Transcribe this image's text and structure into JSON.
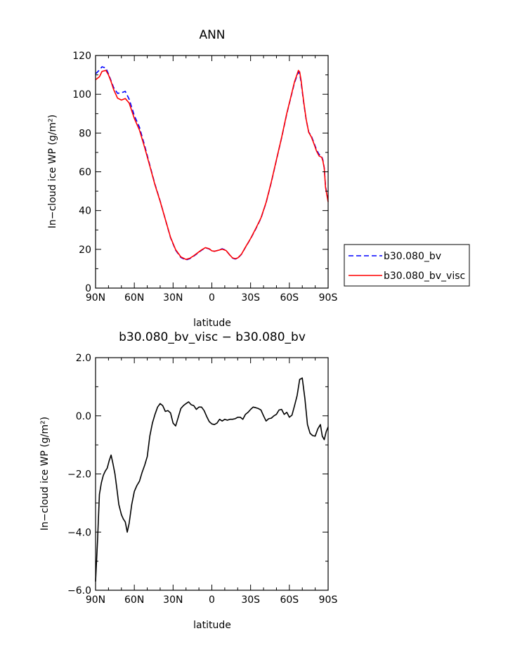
{
  "chart_data": [
    {
      "type": "line",
      "title": "ANN",
      "xlabel": "latitude",
      "ylabel": "In−cloud ice WP (g/m²)",
      "xlim": [
        90,
        -90
      ],
      "ylim": [
        0,
        120
      ],
      "x_ticks": [
        90,
        60,
        30,
        0,
        -30,
        -60,
        -90
      ],
      "x_tick_labels": [
        "90N",
        "60N",
        "30N",
        "0",
        "30S",
        "60S",
        "90S"
      ],
      "y_ticks": [
        0,
        20,
        40,
        60,
        80,
        100,
        120
      ],
      "y_tick_labels": [
        "0",
        "20",
        "40",
        "60",
        "80",
        "100",
        "120"
      ],
      "legend_position": "right",
      "series": [
        {
          "name": "b30.080_bv",
          "color": "#0000ff",
          "style": "dashed",
          "x": [
            90,
            87,
            85,
            82,
            80,
            78,
            76,
            73,
            70,
            67,
            64,
            60,
            56,
            52,
            48,
            44,
            40,
            36,
            32,
            28,
            24,
            20,
            17,
            14,
            11,
            8,
            5,
            2,
            0,
            -2,
            -5,
            -8,
            -11,
            -14,
            -16,
            -18,
            -20,
            -23,
            -26,
            -30,
            -34,
            -38,
            -42,
            -46,
            -50,
            -54,
            -58,
            -61,
            -64,
            -67,
            -68,
            -69,
            -71,
            -73,
            -75,
            -77,
            -79,
            -81,
            -83,
            -85,
            -86,
            -87,
            -88,
            -90
          ],
          "values": [
            110.5,
            112.5,
            114.2,
            113.5,
            110.5,
            107,
            103.5,
            100.5,
            100.8,
            101.5,
            97.5,
            89,
            83,
            73.5,
            63.5,
            53.5,
            45,
            35.5,
            26,
            19.5,
            15.8,
            14.5,
            15.2,
            16.5,
            18,
            19.5,
            20.8,
            20.2,
            19.2,
            19,
            19.5,
            20.3,
            19.5,
            17,
            15.5,
            15,
            15.3,
            17.5,
            21,
            25.5,
            30.5,
            36,
            44,
            54.5,
            66,
            77.5,
            90,
            98,
            106,
            111.5,
            110.5,
            106.5,
            96,
            87,
            80.5,
            78.5,
            75,
            71.5,
            69,
            68,
            66,
            62,
            52.5,
            45
          ]
        },
        {
          "name": "b30.080_bv_visc",
          "color": "#ff0000",
          "style": "solid",
          "x": [
            90,
            87,
            85,
            82,
            80,
            78,
            76,
            73,
            70,
            67,
            64,
            60,
            56,
            52,
            48,
            44,
            40,
            36,
            32,
            28,
            24,
            20,
            17,
            14,
            11,
            8,
            5,
            2,
            0,
            -2,
            -5,
            -8,
            -11,
            -14,
            -16,
            -18,
            -20,
            -23,
            -26,
            -30,
            -34,
            -38,
            -42,
            -46,
            -50,
            -54,
            -58,
            -61,
            -64,
            -67,
            -68,
            -69,
            -71,
            -73,
            -75,
            -77,
            -79,
            -81,
            -83,
            -85,
            -86,
            -87,
            -88,
            -90
          ],
          "values": [
            107.5,
            109,
            111.8,
            112.3,
            110,
            106.5,
            102.5,
            98,
            97,
            97.8,
            95.5,
            87.5,
            81.5,
            72.5,
            63,
            53.2,
            44.8,
            35.5,
            26.2,
            19.8,
            16.1,
            14.8,
            15.4,
            16.7,
            18.2,
            19.7,
            20.9,
            20.3,
            19.2,
            19,
            19.5,
            20.1,
            19.4,
            17,
            15.6,
            15.2,
            15.5,
            17.6,
            21.1,
            25.6,
            30.7,
            36.2,
            44.2,
            54.7,
            66.2,
            77.7,
            90.2,
            98.3,
            106.5,
            112.3,
            111.5,
            107.5,
            96.5,
            87.2,
            80.3,
            78,
            74.5,
            70.8,
            68.2,
            67.5,
            65.5,
            61.8,
            52,
            44.5
          ]
        }
      ]
    },
    {
      "type": "line",
      "title": "b30.080_bv_visc − b30.080_bv",
      "xlabel": "latitude",
      "ylabel": "In−cloud ice WP (g/m²)",
      "xlim": [
        90,
        -90
      ],
      "ylim": [
        -6,
        2
      ],
      "x_ticks": [
        90,
        60,
        30,
        0,
        -30,
        -60,
        -90
      ],
      "x_tick_labels": [
        "90N",
        "60N",
        "30N",
        "0",
        "30S",
        "60S",
        "90S"
      ],
      "y_ticks": [
        -6,
        -4,
        -2,
        0,
        2
      ],
      "y_tick_labels": [
        "−6.0",
        "−4.0",
        "−2.0",
        "0.0",
        "2.0"
      ],
      "series": [
        {
          "color": "#000000",
          "style": "solid",
          "x": [
            90,
            88.5,
            87,
            85.5,
            84,
            82.5,
            81,
            79.5,
            78,
            76.5,
            75,
            73.5,
            72,
            70,
            68.5,
            67,
            65.5,
            64,
            62,
            60,
            58,
            56,
            54,
            52,
            50,
            48,
            46,
            44,
            42,
            40,
            38,
            36,
            34,
            32,
            30,
            28,
            26,
            24,
            22,
            20,
            18,
            16,
            14,
            12,
            10,
            8,
            6,
            4,
            2,
            0,
            -2,
            -4,
            -6,
            -8,
            -10,
            -12,
            -14,
            -16,
            -18,
            -20,
            -22,
            -24,
            -26,
            -28,
            -30,
            -32,
            -34,
            -36,
            -38,
            -40,
            -42,
            -44,
            -46,
            -48,
            -50,
            -52,
            -54,
            -56,
            -58,
            -60,
            -62,
            -64,
            -66,
            -68,
            -70,
            -72,
            -74,
            -76,
            -78,
            -80,
            -82,
            -84,
            -85.5,
            -87,
            -88.5,
            -90
          ],
          "values": [
            -5.7,
            -4.3,
            -2.7,
            -2.3,
            -2.05,
            -1.9,
            -1.8,
            -1.55,
            -1.35,
            -1.65,
            -2.0,
            -2.5,
            -3.05,
            -3.4,
            -3.55,
            -3.65,
            -4.0,
            -3.7,
            -3.05,
            -2.6,
            -2.4,
            -2.25,
            -1.95,
            -1.7,
            -1.4,
            -0.7,
            -0.25,
            0.05,
            0.3,
            0.42,
            0.35,
            0.15,
            0.18,
            0.1,
            -0.25,
            -0.35,
            -0.05,
            0.25,
            0.35,
            0.42,
            0.48,
            0.38,
            0.35,
            0.22,
            0.3,
            0.3,
            0.18,
            -0.02,
            -0.2,
            -0.28,
            -0.3,
            -0.25,
            -0.12,
            -0.18,
            -0.12,
            -0.15,
            -0.12,
            -0.12,
            -0.1,
            -0.05,
            -0.05,
            -0.12,
            0.05,
            0.12,
            0.22,
            0.3,
            0.28,
            0.25,
            0.2,
            0.0,
            -0.18,
            -0.1,
            -0.08,
            0.0,
            0.05,
            0.2,
            0.22,
            0.05,
            0.12,
            -0.05,
            0.02,
            0.35,
            0.7,
            1.25,
            1.3,
            0.6,
            -0.3,
            -0.6,
            -0.68,
            -0.7,
            -0.45,
            -0.3,
            -0.7,
            -0.82,
            -0.55,
            -0.38
          ]
        }
      ]
    }
  ]
}
